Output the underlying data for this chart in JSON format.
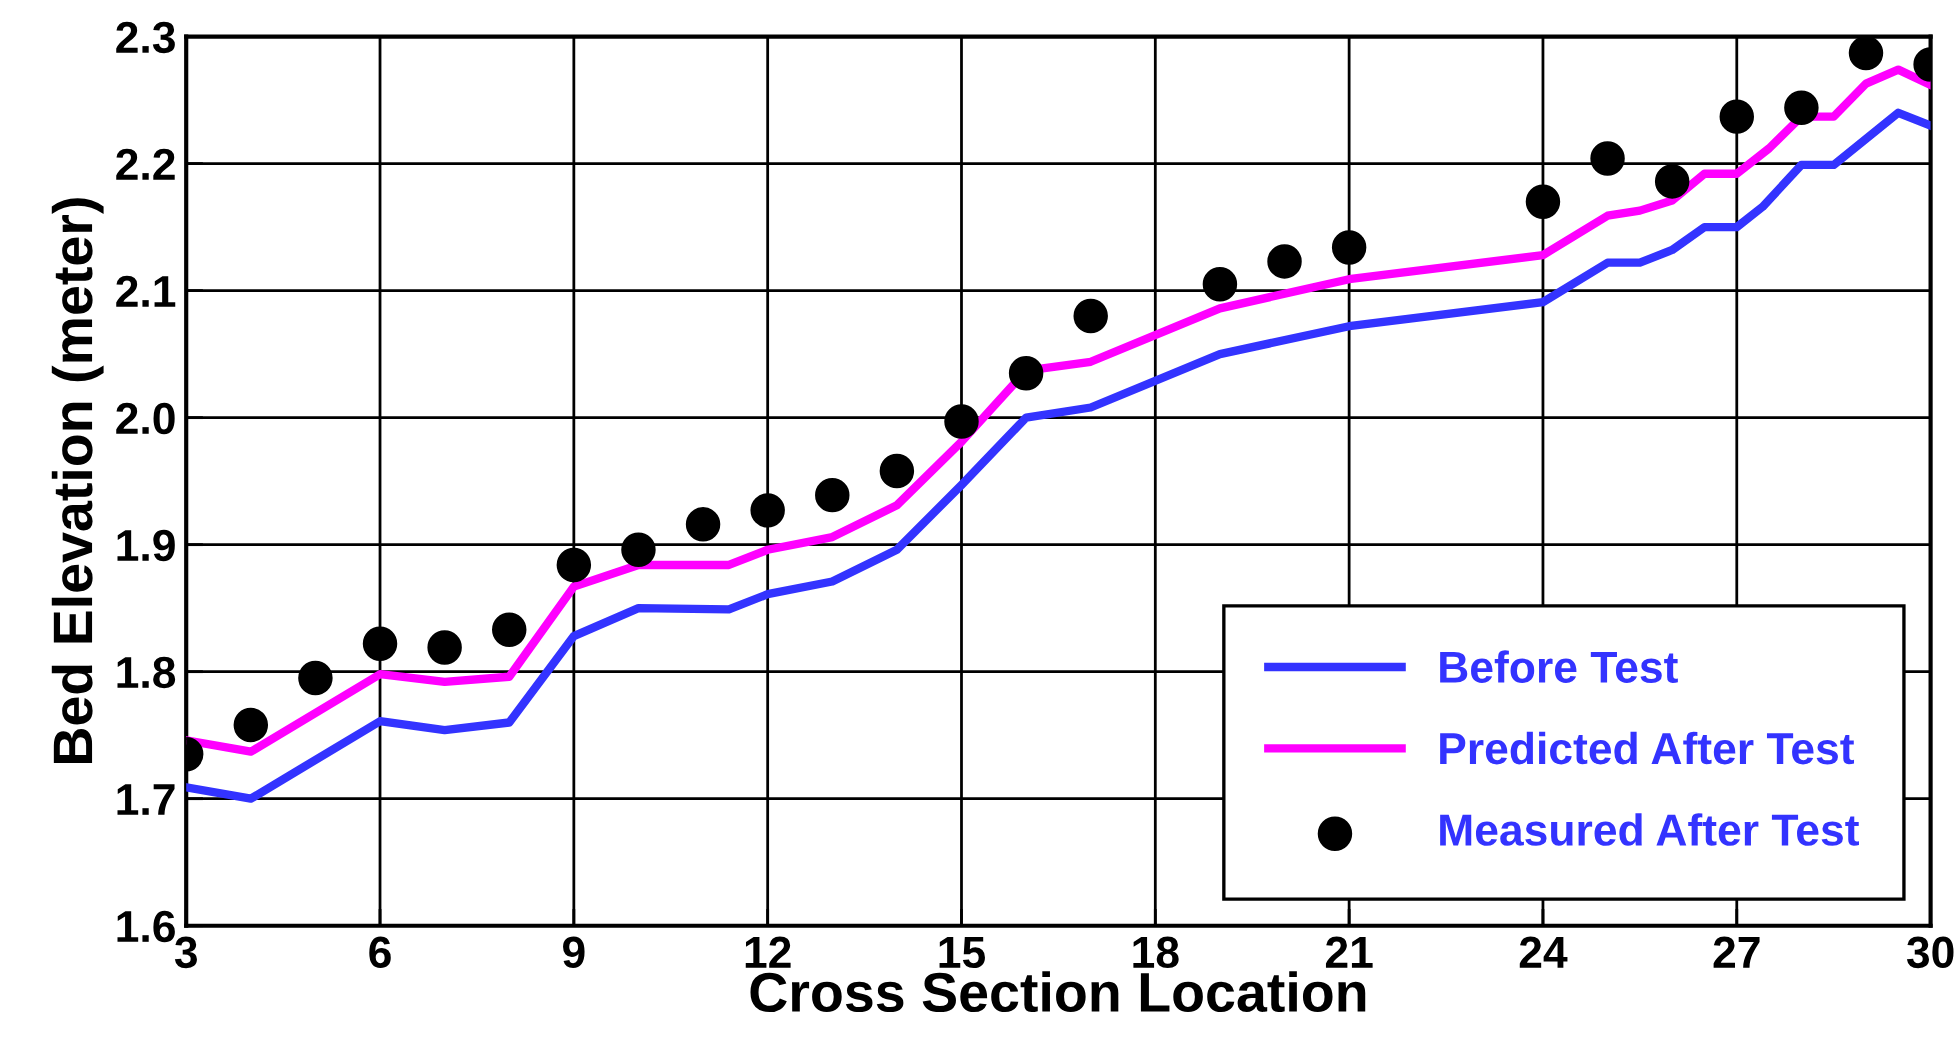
{
  "chart_data": {
    "type": "line",
    "xlabel": "Cross Section Location",
    "ylabel": "Bed Elevation (meter)",
    "xlim": [
      3,
      30
    ],
    "xticks": [
      3,
      6,
      9,
      12,
      15,
      18,
      21,
      24,
      27,
      30
    ],
    "ylim": [
      1.6,
      2.3
    ],
    "yticks": [
      1.6,
      1.7,
      1.8,
      1.9,
      {
        "value": 2.0,
        "label": "2.0"
      },
      2.1,
      2.2,
      2.3
    ],
    "grid": true,
    "legend": "bottom right",
    "line_style": "solid",
    "series": [
      {
        "name": "Before Test",
        "type": "line",
        "color": "#3333ff",
        "x": [
          3,
          4,
          6,
          7,
          8,
          9,
          10,
          11.4,
          12,
          13,
          14,
          15,
          16,
          17,
          19,
          21,
          24,
          25,
          25.5,
          26,
          26.5,
          27,
          27.4,
          28,
          28.5,
          29.5,
          30
        ],
        "values": [
          1.709,
          1.7,
          1.761,
          1.754,
          1.76,
          1.828,
          1.85,
          1.849,
          1.861,
          1.871,
          1.896,
          1.947,
          2.0,
          2.008,
          2.05,
          2.072,
          2.091,
          2.122,
          2.122,
          2.132,
          2.15,
          2.15,
          2.166,
          2.199,
          2.199,
          2.24,
          2.23
        ]
      },
      {
        "name": "Predicted After Test",
        "type": "line",
        "color": "#ff00ff",
        "x": [
          3,
          4,
          6,
          7,
          8,
          9,
          10,
          11.4,
          12,
          13,
          14,
          15,
          16,
          17,
          19,
          21,
          24,
          25,
          25.5,
          26,
          26.5,
          27,
          27.5,
          28,
          28.5,
          29,
          29.5,
          30
        ],
        "values": [
          1.746,
          1.737,
          1.798,
          1.792,
          1.796,
          1.867,
          1.884,
          1.884,
          1.896,
          1.906,
          1.931,
          1.981,
          2.037,
          2.044,
          2.086,
          2.109,
          2.128,
          2.159,
          2.163,
          2.171,
          2.192,
          2.192,
          2.212,
          2.237,
          2.237,
          2.263,
          2.274,
          2.262
        ]
      },
      {
        "name": "Measured After Test",
        "type": "scatter",
        "marker": "circle",
        "color": "#000000",
        "x": [
          3,
          4,
          5,
          6,
          7,
          8,
          9,
          10,
          11,
          12,
          13,
          14,
          15,
          16,
          17,
          19,
          20,
          21,
          24,
          25,
          26,
          27,
          28,
          29,
          30
        ],
        "values": [
          1.735,
          1.758,
          1.795,
          1.822,
          1.819,
          1.833,
          1.884,
          1.896,
          1.916,
          1.927,
          1.939,
          1.958,
          1.997,
          2.035,
          2.08,
          2.105,
          2.123,
          2.134,
          2.17,
          2.204,
          2.186,
          2.237,
          2.244,
          2.287,
          2.278
        ]
      }
    ]
  }
}
